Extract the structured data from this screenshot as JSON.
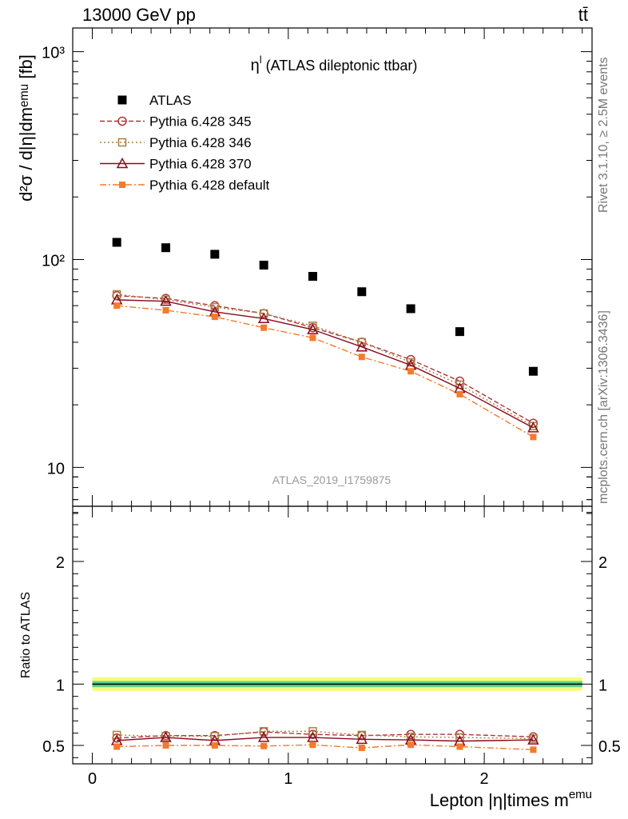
{
  "header": {
    "energy_label": "13000 GeV pp",
    "process_label": "tt̄"
  },
  "side_labels": {
    "rivet": "Rivet 3.1.10, ≥ 2.5M events",
    "site": "mcplots.cern.ch [arXiv:1306.3436]"
  },
  "colors": {
    "atlas": "#000000",
    "py345": "#b0353a",
    "py346": "#a88040",
    "py370": "#8b0a1e",
    "pydefault": "#f47a2c",
    "band_inner": "#5ed08c",
    "band_outer": "#f5fb7a"
  },
  "chart_data": [
    {
      "type": "scatter",
      "panel": "main",
      "title_main": "η",
      "title_sup": "l",
      "title_rest": " (ATLAS dileptonic ttbar)",
      "ylabel": "d²σ / d|η|dmᵉᵐᵘ [fb]",
      "yscale": "log",
      "ylim": [
        6.5,
        1300
      ],
      "xlim": [
        -0.1,
        2.55
      ],
      "yticks": [
        10,
        100,
        1000
      ],
      "ytick_labels": [
        "10",
        "10²",
        "10³"
      ],
      "x": [
        0.125,
        0.375,
        0.625,
        0.875,
        1.125,
        1.375,
        1.625,
        1.875,
        2.25
      ],
      "series": [
        {
          "name": "ATLAS",
          "key": "atlas",
          "marker": "square-filled",
          "values": [
            121,
            114,
            106,
            94,
            83,
            70,
            58,
            45,
            29
          ]
        },
        {
          "name": "Pythia 6.428 345",
          "key": "py345",
          "marker": "circle-open",
          "dash": "6,3",
          "values": [
            67,
            65,
            60,
            55,
            47,
            40,
            33,
            26,
            16.3
          ]
        },
        {
          "name": "Pythia 6.428 346",
          "key": "py346",
          "marker": "square-open",
          "dash": "2,3",
          "values": [
            68,
            64,
            59,
            55,
            48,
            40,
            32,
            25,
            15.8
          ]
        },
        {
          "name": "Pythia 6.428 370",
          "key": "py370",
          "marker": "triangle-open",
          "dash": "",
          "values": [
            64,
            63,
            56,
            52,
            46,
            38,
            31,
            24,
            15.5
          ]
        },
        {
          "name": "Pythia 6.428 default",
          "key": "pydefault",
          "marker": "square-filled-small",
          "dash": "8,3,2,3",
          "values": [
            60,
            57,
            53,
            47,
            42,
            34,
            29,
            22.5,
            14
          ]
        }
      ],
      "annotation": "ATLAS_2019_I1759875"
    },
    {
      "type": "line",
      "panel": "ratio",
      "ylabel": "Ratio to ATLAS",
      "xlabel_main": "Lepton |η|times m",
      "xlabel_sup": "emu",
      "ylim": [
        0.35,
        2.45
      ],
      "xlim": [
        -0.1,
        2.55
      ],
      "yticks": [
        0.5,
        1,
        2
      ],
      "ytick_labels": [
        "0.5",
        "1",
        "2"
      ],
      "xticks": [
        0,
        1,
        2
      ],
      "xtick_labels": [
        "0",
        "1",
        "2"
      ],
      "band_inner": [
        0.975,
        1.025
      ],
      "band_outer": [
        0.945,
        1.055
      ],
      "x": [
        0.125,
        0.375,
        0.625,
        0.875,
        1.125,
        1.375,
        1.625,
        1.875,
        2.25
      ],
      "series": [
        {
          "name": "Pythia 6.428 345",
          "key": "py345",
          "marker": "circle-open",
          "dash": "6,3",
          "values": [
            0.56,
            0.58,
            0.58,
            0.61,
            0.59,
            0.58,
            0.59,
            0.59,
            0.57
          ]
        },
        {
          "name": "Pythia 6.428 346",
          "key": "py346",
          "marker": "square-open",
          "dash": "2,3",
          "values": [
            0.585,
            0.575,
            0.575,
            0.615,
            0.615,
            0.585,
            0.57,
            0.565,
            0.555
          ]
        },
        {
          "name": "Pythia 6.428 370",
          "key": "py370",
          "marker": "triangle-open",
          "dash": "",
          "values": [
            0.54,
            0.565,
            0.54,
            0.565,
            0.565,
            0.55,
            0.545,
            0.535,
            0.545
          ]
        },
        {
          "name": "Pythia 6.428 default",
          "key": "pydefault",
          "marker": "square-filled-small",
          "dash": "8,3,2,3",
          "values": [
            0.49,
            0.5,
            0.5,
            0.495,
            0.505,
            0.48,
            0.505,
            0.49,
            0.465
          ]
        }
      ]
    }
  ]
}
